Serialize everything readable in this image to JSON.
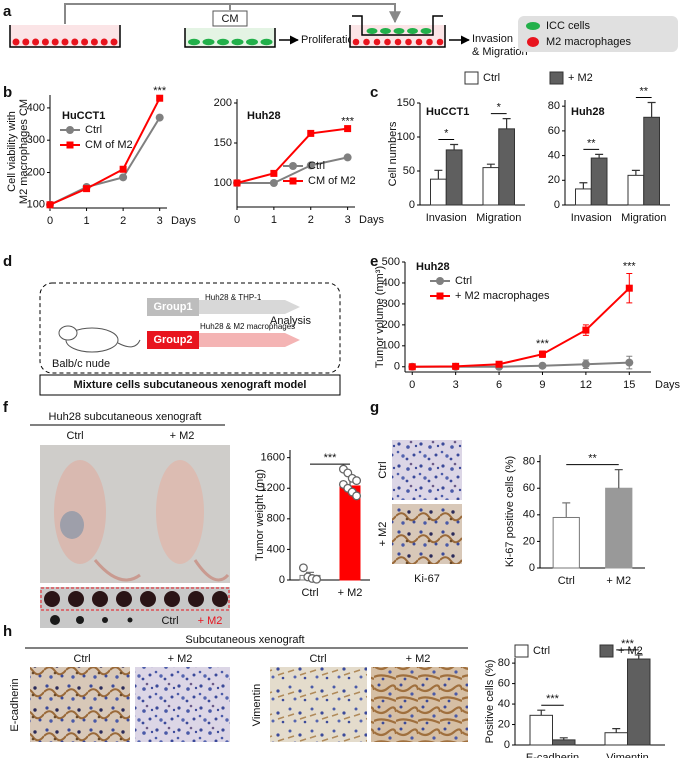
{
  "panel_labels": [
    "a",
    "b",
    "c",
    "d",
    "e",
    "f",
    "g",
    "h"
  ],
  "schematic_a": {
    "cm": "CM",
    "proliferation": "Proliferation",
    "invasion": [
      "Invasion",
      "& Migration"
    ],
    "legend": [
      "ICC cells",
      "M2 macrophages"
    ]
  },
  "schematic_d": {
    "group1": "Group1",
    "group1_text": "Huh28 & THP-1",
    "group2": "Group2",
    "group2_text": "Huh28 & M2 macrophages",
    "analysis": "Analysis",
    "mouse": "Balb/c nude",
    "caption": "Mixture cells subcutaneous xenograft model"
  },
  "panel_f": {
    "title": "Huh28 subcutaneous xenograft",
    "columns": [
      "Ctrl",
      "+ M2"
    ],
    "tumor_labels": [
      "Ctrl",
      "+ M2"
    ]
  },
  "panel_g": {
    "rows": [
      "Ctrl",
      "+ M2"
    ],
    "stain": "Ki-67"
  },
  "panel_h": {
    "title": "Subcutaneous xenograft",
    "columns": [
      "Ctrl",
      "+ M2",
      "Ctrl",
      "+ M2"
    ],
    "stains": [
      "E-cadherin",
      "Vimentin"
    ]
  },
  "chart_data": [
    {
      "type": "line",
      "title": "HuCCT1",
      "ylabel": [
        "Cell viability with",
        "M2 macrophages CM"
      ],
      "xlabel": "Days",
      "x": [
        0,
        1,
        2,
        3
      ],
      "xlim": [
        0,
        3.2
      ],
      "xticks": [
        0,
        1,
        2,
        3
      ],
      "ylim": [
        90,
        440
      ],
      "yticks": [
        100,
        200,
        300,
        400
      ],
      "series": [
        {
          "name": "Ctrl",
          "color": "#808080",
          "marker": "circle",
          "values": [
            100,
            155,
            185,
            370
          ]
        },
        {
          "name": "CM of M2",
          "color": "#ff0000",
          "marker": "square",
          "values": [
            100,
            150,
            210,
            430
          ]
        }
      ],
      "significance": [
        null,
        null,
        null,
        "***"
      ]
    },
    {
      "type": "line",
      "title": "Huh28",
      "xlabel": "Days",
      "x": [
        0,
        1,
        2,
        3
      ],
      "xlim": [
        0,
        3.2
      ],
      "xticks": [
        0,
        1,
        2,
        3
      ],
      "ylim": [
        70,
        205
      ],
      "yticks": [
        100,
        150,
        200
      ],
      "series": [
        {
          "name": "Ctrl",
          "color": "#808080",
          "marker": "circle",
          "values": [
            100,
            100,
            122,
            132
          ]
        },
        {
          "name": "CM of M2",
          "color": "#ff0000",
          "marker": "square",
          "values": [
            100,
            112,
            162,
            168
          ]
        }
      ],
      "significance": [
        null,
        null,
        null,
        "***"
      ]
    },
    {
      "type": "bar",
      "title": "HuCCT1",
      "ylabel": "Cell numbers",
      "categories": [
        "Invasion",
        "Migration"
      ],
      "ylim": [
        0,
        150
      ],
      "yticks": [
        0,
        50,
        100,
        150
      ],
      "series": [
        {
          "name": "Ctrl",
          "color": "#ffffff",
          "values": [
            38,
            55
          ],
          "errors": [
            13,
            5
          ]
        },
        {
          "name": "+ M2",
          "color": "#5f5f5f",
          "values": [
            81,
            112
          ],
          "errors": [
            8,
            15
          ]
        }
      ],
      "significance": [
        "*",
        "*"
      ]
    },
    {
      "type": "bar",
      "title": "Huh28",
      "categories": [
        "Invasion",
        "Migration"
      ],
      "ylim": [
        0,
        85
      ],
      "yticks": [
        0,
        20,
        40,
        60,
        80
      ],
      "series": [
        {
          "color": "#ffffff",
          "values": [
            13,
            24
          ],
          "errors": [
            5,
            4
          ]
        },
        {
          "color": "#5f5f5f",
          "values": [
            38,
            71
          ],
          "errors": [
            3,
            12
          ]
        }
      ],
      "significance": [
        "**",
        "**"
      ]
    },
    {
      "type": "line",
      "title": "Huh28",
      "ylabel": "Tumor volume (mm³)",
      "xlabel": "Days",
      "x": [
        0,
        3,
        6,
        9,
        12,
        15
      ],
      "xlim": [
        -0.5,
        16.5
      ],
      "xticks": [
        0,
        3,
        6,
        9,
        12,
        15
      ],
      "ylim": [
        -25,
        500
      ],
      "yticks": [
        0,
        100,
        200,
        300,
        400,
        500
      ],
      "series": [
        {
          "name": "Ctrl",
          "color": "#808080",
          "marker": "circle",
          "values": [
            0,
            0,
            0,
            5,
            12,
            20
          ],
          "errors": [
            5,
            5,
            5,
            8,
            20,
            30
          ]
        },
        {
          "name": "+ M2 macrophages",
          "color": "#ff0000",
          "marker": "square",
          "values": [
            0,
            2,
            12,
            60,
            175,
            375
          ],
          "errors": [
            5,
            5,
            8,
            15,
            25,
            70
          ]
        }
      ],
      "significance": [
        null,
        null,
        null,
        "***",
        null,
        "***"
      ]
    },
    {
      "type": "bar",
      "ylabel": "Tumor weight (mg)",
      "categories": [
        "Ctrl",
        "+ M2"
      ],
      "values": [
        60,
        1230
      ],
      "errors": [
        40,
        130
      ],
      "colors": [
        "#ffffff",
        "#ff0000"
      ],
      "points": [
        [
          160,
          40,
          20,
          10
        ],
        [
          1450,
          1400,
          1330,
          1300,
          1250,
          1200,
          1150,
          1100
        ]
      ],
      "ylim": [
        0,
        1700
      ],
      "yticks": [
        0,
        400,
        800,
        1200,
        1600
      ],
      "significance": "***"
    },
    {
      "type": "bar",
      "ylabel": "Ki-67 positive cells (%)",
      "categories": [
        "Ctrl",
        "+ M2"
      ],
      "values": [
        38,
        60
      ],
      "errors": [
        11,
        14
      ],
      "colors": [
        "#ffffff",
        "#999999"
      ],
      "ylim": [
        0,
        85
      ],
      "yticks": [
        0,
        20,
        40,
        60,
        80
      ],
      "significance": "**"
    },
    {
      "type": "bar",
      "ylabel": "Positive cells (%)",
      "categories": [
        "E-cadherin",
        "Vimentin"
      ],
      "ylim": [
        0,
        85
      ],
      "yticks": [
        0,
        20,
        40,
        60,
        80
      ],
      "series": [
        {
          "name": "Ctrl",
          "color": "#ffffff",
          "values": [
            29,
            12
          ],
          "errors": [
            5,
            4
          ]
        },
        {
          "name": "+ M2",
          "color": "#5f5f5f",
          "values": [
            5,
            84
          ],
          "errors": [
            2,
            4
          ]
        }
      ],
      "significance": [
        "***",
        "***"
      ]
    }
  ]
}
